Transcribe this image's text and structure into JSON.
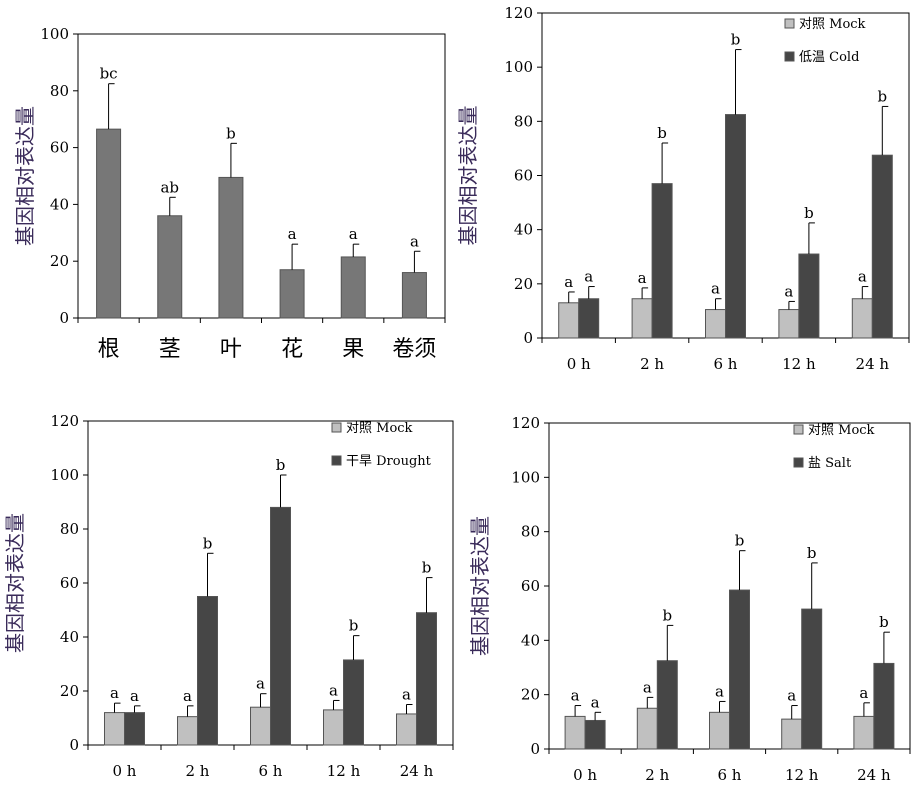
{
  "colors": {
    "single_bar": "#777777",
    "mock_bar": "#c0c0c0",
    "treat_bar": "#464646",
    "frame": "#000000"
  },
  "chart_data": [
    {
      "type": "bar",
      "ylabel": "基因相对表达量",
      "ylim": [
        0,
        100
      ],
      "yticks": [
        0,
        20,
        40,
        60,
        80,
        100
      ],
      "categories": [
        "根",
        "茎",
        "叶",
        "花",
        "果",
        "卷须"
      ],
      "series": [
        {
          "values": [
            66.5,
            36,
            49.5,
            17,
            21.5,
            16
          ],
          "errors": [
            16,
            6.5,
            12,
            9,
            4.5,
            7.5
          ],
          "letters": [
            "bc",
            "ab",
            "b",
            "a",
            "a",
            "a"
          ]
        }
      ],
      "grid": false
    },
    {
      "type": "bar",
      "ylabel": "基因相对表达量",
      "ylim": [
        0,
        120
      ],
      "yticks": [
        0,
        20,
        40,
        60,
        80,
        100,
        120
      ],
      "categories": [
        "0 h",
        "2 h",
        "6 h",
        "12 h",
        "24 h"
      ],
      "legend_position": "top-right",
      "series": [
        {
          "name": "对照 Mock",
          "values": [
            13,
            14.5,
            10.5,
            10.5,
            14.5
          ],
          "errors": [
            4,
            4,
            4,
            3,
            4.5
          ],
          "letters": [
            "a",
            "a",
            "a",
            "a",
            "a"
          ]
        },
        {
          "name": "低温 Cold",
          "values": [
            14.5,
            57,
            82.5,
            31,
            67.5
          ],
          "errors": [
            4.5,
            15,
            24,
            11.5,
            18
          ],
          "letters": [
            "a",
            "b",
            "b",
            "b",
            "b"
          ]
        }
      ],
      "grid": false
    },
    {
      "type": "bar",
      "ylabel": "基因相对表达量",
      "ylim": [
        0,
        120
      ],
      "yticks": [
        0,
        20,
        40,
        60,
        80,
        100,
        120
      ],
      "categories": [
        "0 h",
        "2 h",
        "6 h",
        "12 h",
        "24 h"
      ],
      "legend_position": "top-right",
      "series": [
        {
          "name": "对照 Mock",
          "values": [
            12,
            10.5,
            14,
            13,
            11.5
          ],
          "errors": [
            3.5,
            4,
            5,
            3.5,
            3.5
          ],
          "letters": [
            "a",
            "a",
            "a",
            "a",
            "a"
          ]
        },
        {
          "name": "干旱 Drought",
          "values": [
            12,
            55,
            88,
            31.5,
            49
          ],
          "errors": [
            2.5,
            16,
            12,
            9,
            13
          ],
          "letters": [
            "a",
            "b",
            "b",
            "b",
            "b"
          ]
        }
      ],
      "grid": false
    },
    {
      "type": "bar",
      "ylabel": "基因相对表达量",
      "ylim": [
        0,
        120
      ],
      "yticks": [
        0,
        20,
        40,
        60,
        80,
        100,
        120
      ],
      "categories": [
        "0 h",
        "2 h",
        "6 h",
        "12 h",
        "24 h"
      ],
      "legend_position": "top-right",
      "series": [
        {
          "name": "对照 Mock",
          "values": [
            12,
            15,
            13.5,
            11,
            12
          ],
          "errors": [
            4,
            4,
            4,
            5,
            5
          ],
          "letters": [
            "a",
            "a",
            "a",
            "a",
            "a"
          ]
        },
        {
          "name": "盐 Salt",
          "values": [
            10.5,
            32.5,
            58.5,
            51.5,
            31.5
          ],
          "errors": [
            3,
            13,
            14.5,
            17,
            11.5
          ],
          "letters": [
            "a",
            "b",
            "b",
            "b",
            "b"
          ]
        }
      ],
      "grid": false
    }
  ]
}
